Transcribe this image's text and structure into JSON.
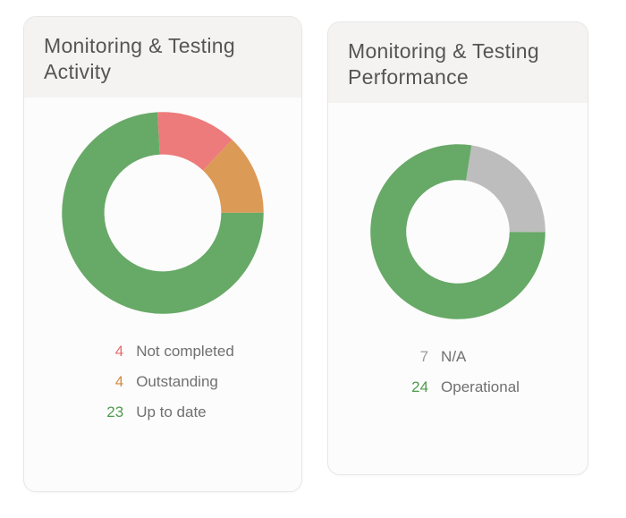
{
  "background_color": "#ffffff",
  "card_bg": "#fcfcfc",
  "card_header_bg": "#f4f3f2",
  "card_border": "#e7e7e7",
  "title_color": "#555555",
  "label_color": "#707070",
  "title_fontsize": 23,
  "legend_fontsize": 17,
  "cards": {
    "activity": {
      "title": "Monitoring & Testing Activity",
      "donut": {
        "type": "donut",
        "outer_radius": 100,
        "inner_radius": 58,
        "start_angle_deg": -3,
        "bg": "#ffffff",
        "slices": [
          {
            "key": "not_completed",
            "value": 4,
            "color": "#ed7b7b"
          },
          {
            "key": "outstanding",
            "value": 4,
            "color": "#dc9a57"
          },
          {
            "key": "up_to_date",
            "value": 23,
            "color": "#67a967"
          }
        ]
      },
      "legend": [
        {
          "value": "4",
          "label": "Not completed",
          "color": "#e96a6a"
        },
        {
          "value": "4",
          "label": "Outstanding",
          "color": "#d38b44"
        },
        {
          "value": "23",
          "label": "Up to date",
          "color": "#4f9b4f"
        }
      ]
    },
    "performance": {
      "title": "Monitoring & Testing Performance",
      "donut": {
        "type": "donut",
        "outer_radius": 88,
        "inner_radius": 52,
        "start_angle_deg": 9,
        "bg": "#ffffff",
        "slices": [
          {
            "key": "na",
            "value": 7,
            "color": "#bdbdbd"
          },
          {
            "key": "operational",
            "value": 24,
            "color": "#67a967"
          }
        ]
      },
      "legend": [
        {
          "value": "7",
          "label": "N/A",
          "color": "#9c9c9c"
        },
        {
          "value": "24",
          "label": "Operational",
          "color": "#4f9b4f"
        }
      ]
    }
  }
}
